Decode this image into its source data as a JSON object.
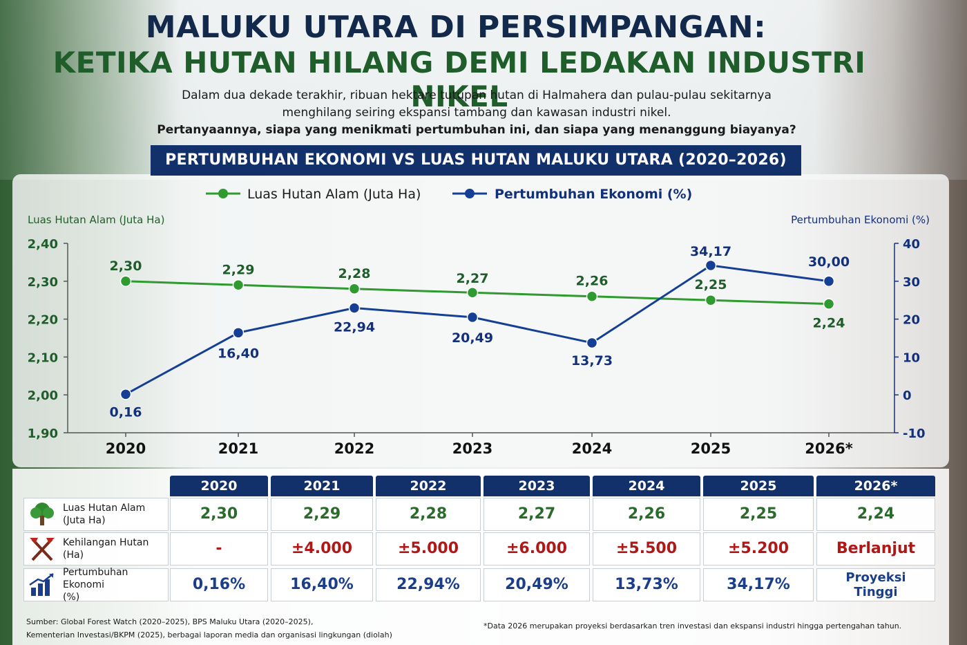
{
  "header": {
    "title_line1": "MALUKU UTARA DI PERSIMPANGAN:",
    "title_line2": "KETIKA HUTAN HILANG DEMI LEDAKAN INDUSTRI NIKEL",
    "intro_line1": "Dalam dua dekade terakhir, ribuan hektare tutupan hutan di Halmahera dan pulau-pulau sekitarnya",
    "intro_line2": "menghilang seiring ekspansi tambang dan kawasan industri nikel.",
    "intro_question": "Pertanyaannya, siapa yang menikmati pertumbuhan ini, dan siapa yang menanggung biayanya?"
  },
  "chart_banner": "PERTUMBUHAN EKONOMI VS LUAS HUTAN MALUKU UTARA (2020–2026)",
  "chart_data": {
    "type": "line",
    "title": "PERTUMBUHAN EKONOMI VS LUAS HUTAN MALUKU UTARA (2020–2026)",
    "categories": [
      "2020",
      "2021",
      "2022",
      "2023",
      "2024",
      "2025",
      "2026*"
    ],
    "series": [
      {
        "name": "Luas Hutan Alam (Juta Ha)",
        "axis": "left",
        "color": "#2f9a2f",
        "values": [
          2.3,
          2.29,
          2.28,
          2.27,
          2.26,
          2.25,
          2.24
        ],
        "labels": [
          "2,30",
          "2,29",
          "2,28",
          "2,27",
          "2,26",
          "2,25",
          "2,24"
        ]
      },
      {
        "name": "Pertumbuhan Ekonomi (%)",
        "axis": "right",
        "color": "#143f94",
        "values": [
          0.16,
          16.4,
          22.94,
          20.49,
          13.73,
          34.17,
          30.0
        ],
        "labels": [
          "0,16",
          "16,40",
          "22,94",
          "20,49",
          "13,73",
          "34,17",
          "30,00"
        ]
      }
    ],
    "ylabel_left": "Luas Hutan Alam (Juta Ha)",
    "ylabel_right": "Pertumbuhan Ekonomi (%)",
    "ylim_left": [
      1.9,
      2.4
    ],
    "yticks_left": [
      "2,40",
      "2,30",
      "2,20",
      "2,10",
      "2,00",
      "1,90"
    ],
    "ylim_right": [
      -10,
      40
    ],
    "yticks_right": [
      "40",
      "30",
      "20",
      "10",
      "0",
      "-10"
    ],
    "legend_position": "top-center",
    "grid": false
  },
  "table": {
    "years": [
      "2020",
      "2021",
      "2022",
      "2023",
      "2024",
      "2025",
      "2026*"
    ],
    "rows": [
      {
        "icon": "tree-icon",
        "label_line1": "Luas Hutan Alam",
        "label_line2": "(Juta Ha)",
        "values": [
          "2,30",
          "2,29",
          "2,28",
          "2,27",
          "2,26",
          "2,25",
          "2,24"
        ],
        "color": "#2a6a2a"
      },
      {
        "icon": "crossed-axes-icon",
        "label_line1": "Kehilangan Hutan",
        "label_line2": "(Ha)",
        "values": [
          "-",
          "±4.000",
          "±5.000",
          "±6.000",
          "±5.500",
          "±5.200",
          "Berlanjut"
        ],
        "color": "#b01818"
      },
      {
        "icon": "growth-chart-icon",
        "label_line1": "Pertumbuhan Ekonomi",
        "label_line2": "(%)",
        "values": [
          "0,16%",
          "16,40%",
          "22,94%",
          "20,49%",
          "13,73%",
          "34,17%"
        ],
        "last_value_line1": "Proyeksi",
        "last_value_line2": "Tinggi",
        "color": "#1a3e8a"
      }
    ]
  },
  "footer": {
    "source_line1": "Sumber: Global Forest Watch (2020–2025), BPS Maluku Utara (2020–2025),",
    "source_line2": "Kementerian Investasi/BKPM (2025), berbagai laporan media dan organisasi lingkungan (diolah)",
    "note": "*Data 2026 merupakan proyeksi berdasarkan tren investasi dan ekspansi industri hingga pertengahan tahun."
  }
}
